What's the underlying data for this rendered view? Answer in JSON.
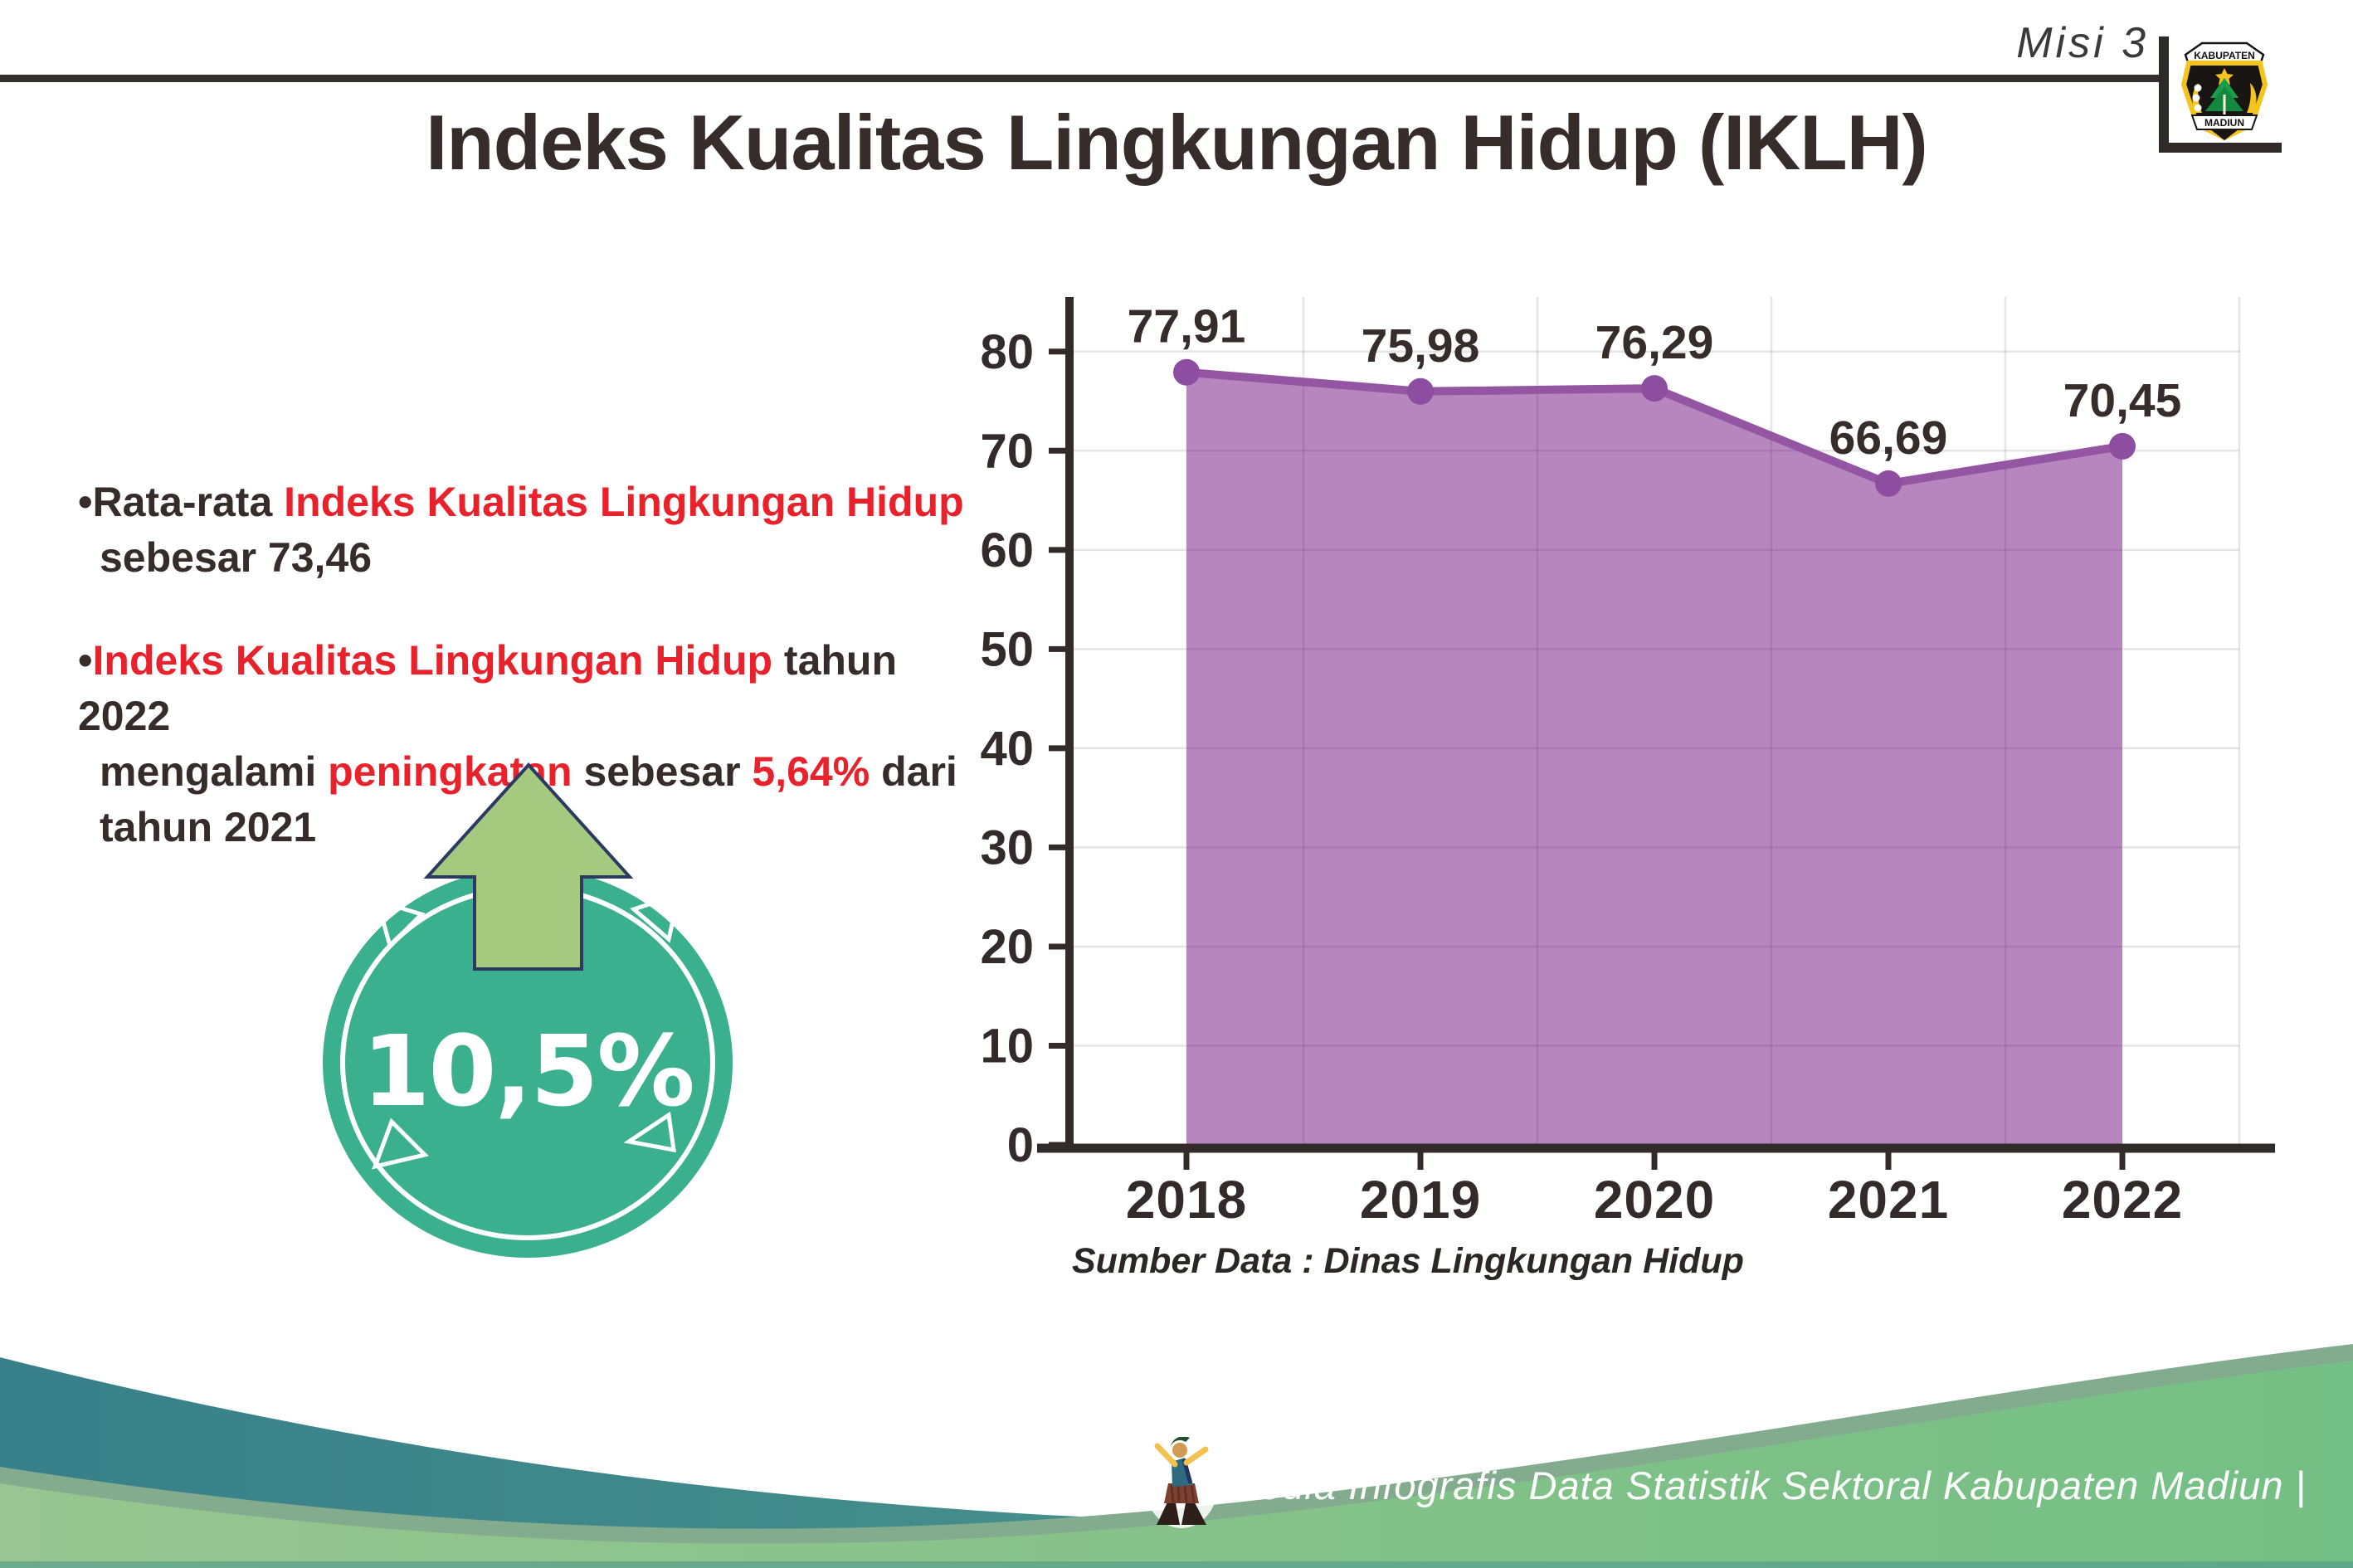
{
  "header": {
    "misi_label": "Misi 3",
    "logo_top": "KABUPATEN",
    "logo_bottom": "MADIUN"
  },
  "title": "Indeks Kualitas Lingkungan Hidup (IKLH)",
  "bullets": {
    "bullet_char": "•",
    "b1": {
      "l1a": "Rata-rata ",
      "l1b": "Indeks Kualitas Lingkungan Hidup",
      "l2": "sebesar 73,46"
    },
    "b2": {
      "l1a": "Indeks Kualitas Lingkungan Hidup",
      "l1b": " tahun 2022",
      "l2a": "mengalami ",
      "l2b": "peningkatan",
      "l2c": " sebesar ",
      "l2d": "5,64%",
      "l2e": " dari",
      "l3": "tahun 2021"
    }
  },
  "badge": {
    "value": "10,5%"
  },
  "chart_data": {
    "type": "area",
    "title": "",
    "categories": [
      "2018",
      "2019",
      "2020",
      "2021",
      "2022"
    ],
    "series": [
      {
        "name": "IKLH",
        "values": [
          77.91,
          75.98,
          76.29,
          66.69,
          70.45
        ],
        "labels": [
          "77,91",
          "75,98",
          "76,29",
          "66,69",
          "70,45"
        ]
      }
    ],
    "ylim": [
      0,
      85
    ],
    "yticks": [
      0,
      10,
      20,
      30,
      40,
      50,
      60,
      70,
      80
    ],
    "grid": true,
    "legend": "none",
    "colors": {
      "fill": "#b886be",
      "line": "#9456a3",
      "dot": "#8d4da0",
      "label": "#362d2a",
      "axis": "#332b29",
      "grid": "rgba(60,35,65,0.12)"
    }
  },
  "source_note": "Sumber Data : Dinas Lingkungan Hidup",
  "footer": {
    "text": "Media Infografis Data Statistik Sektoral Kabupaten Madiun |"
  },
  "palette": {
    "dark_text": "#362d2a",
    "red_text": "#e8212b",
    "badge_teal": "#3bb08e",
    "arrow_green": "#a5c97e",
    "arrow_outline": "#2b3a63",
    "footer_teal": "#37808a",
    "footer_sage": "#83ab8e",
    "footer_green_light": "#98c591",
    "footer_green_dark": "#74bf85"
  }
}
